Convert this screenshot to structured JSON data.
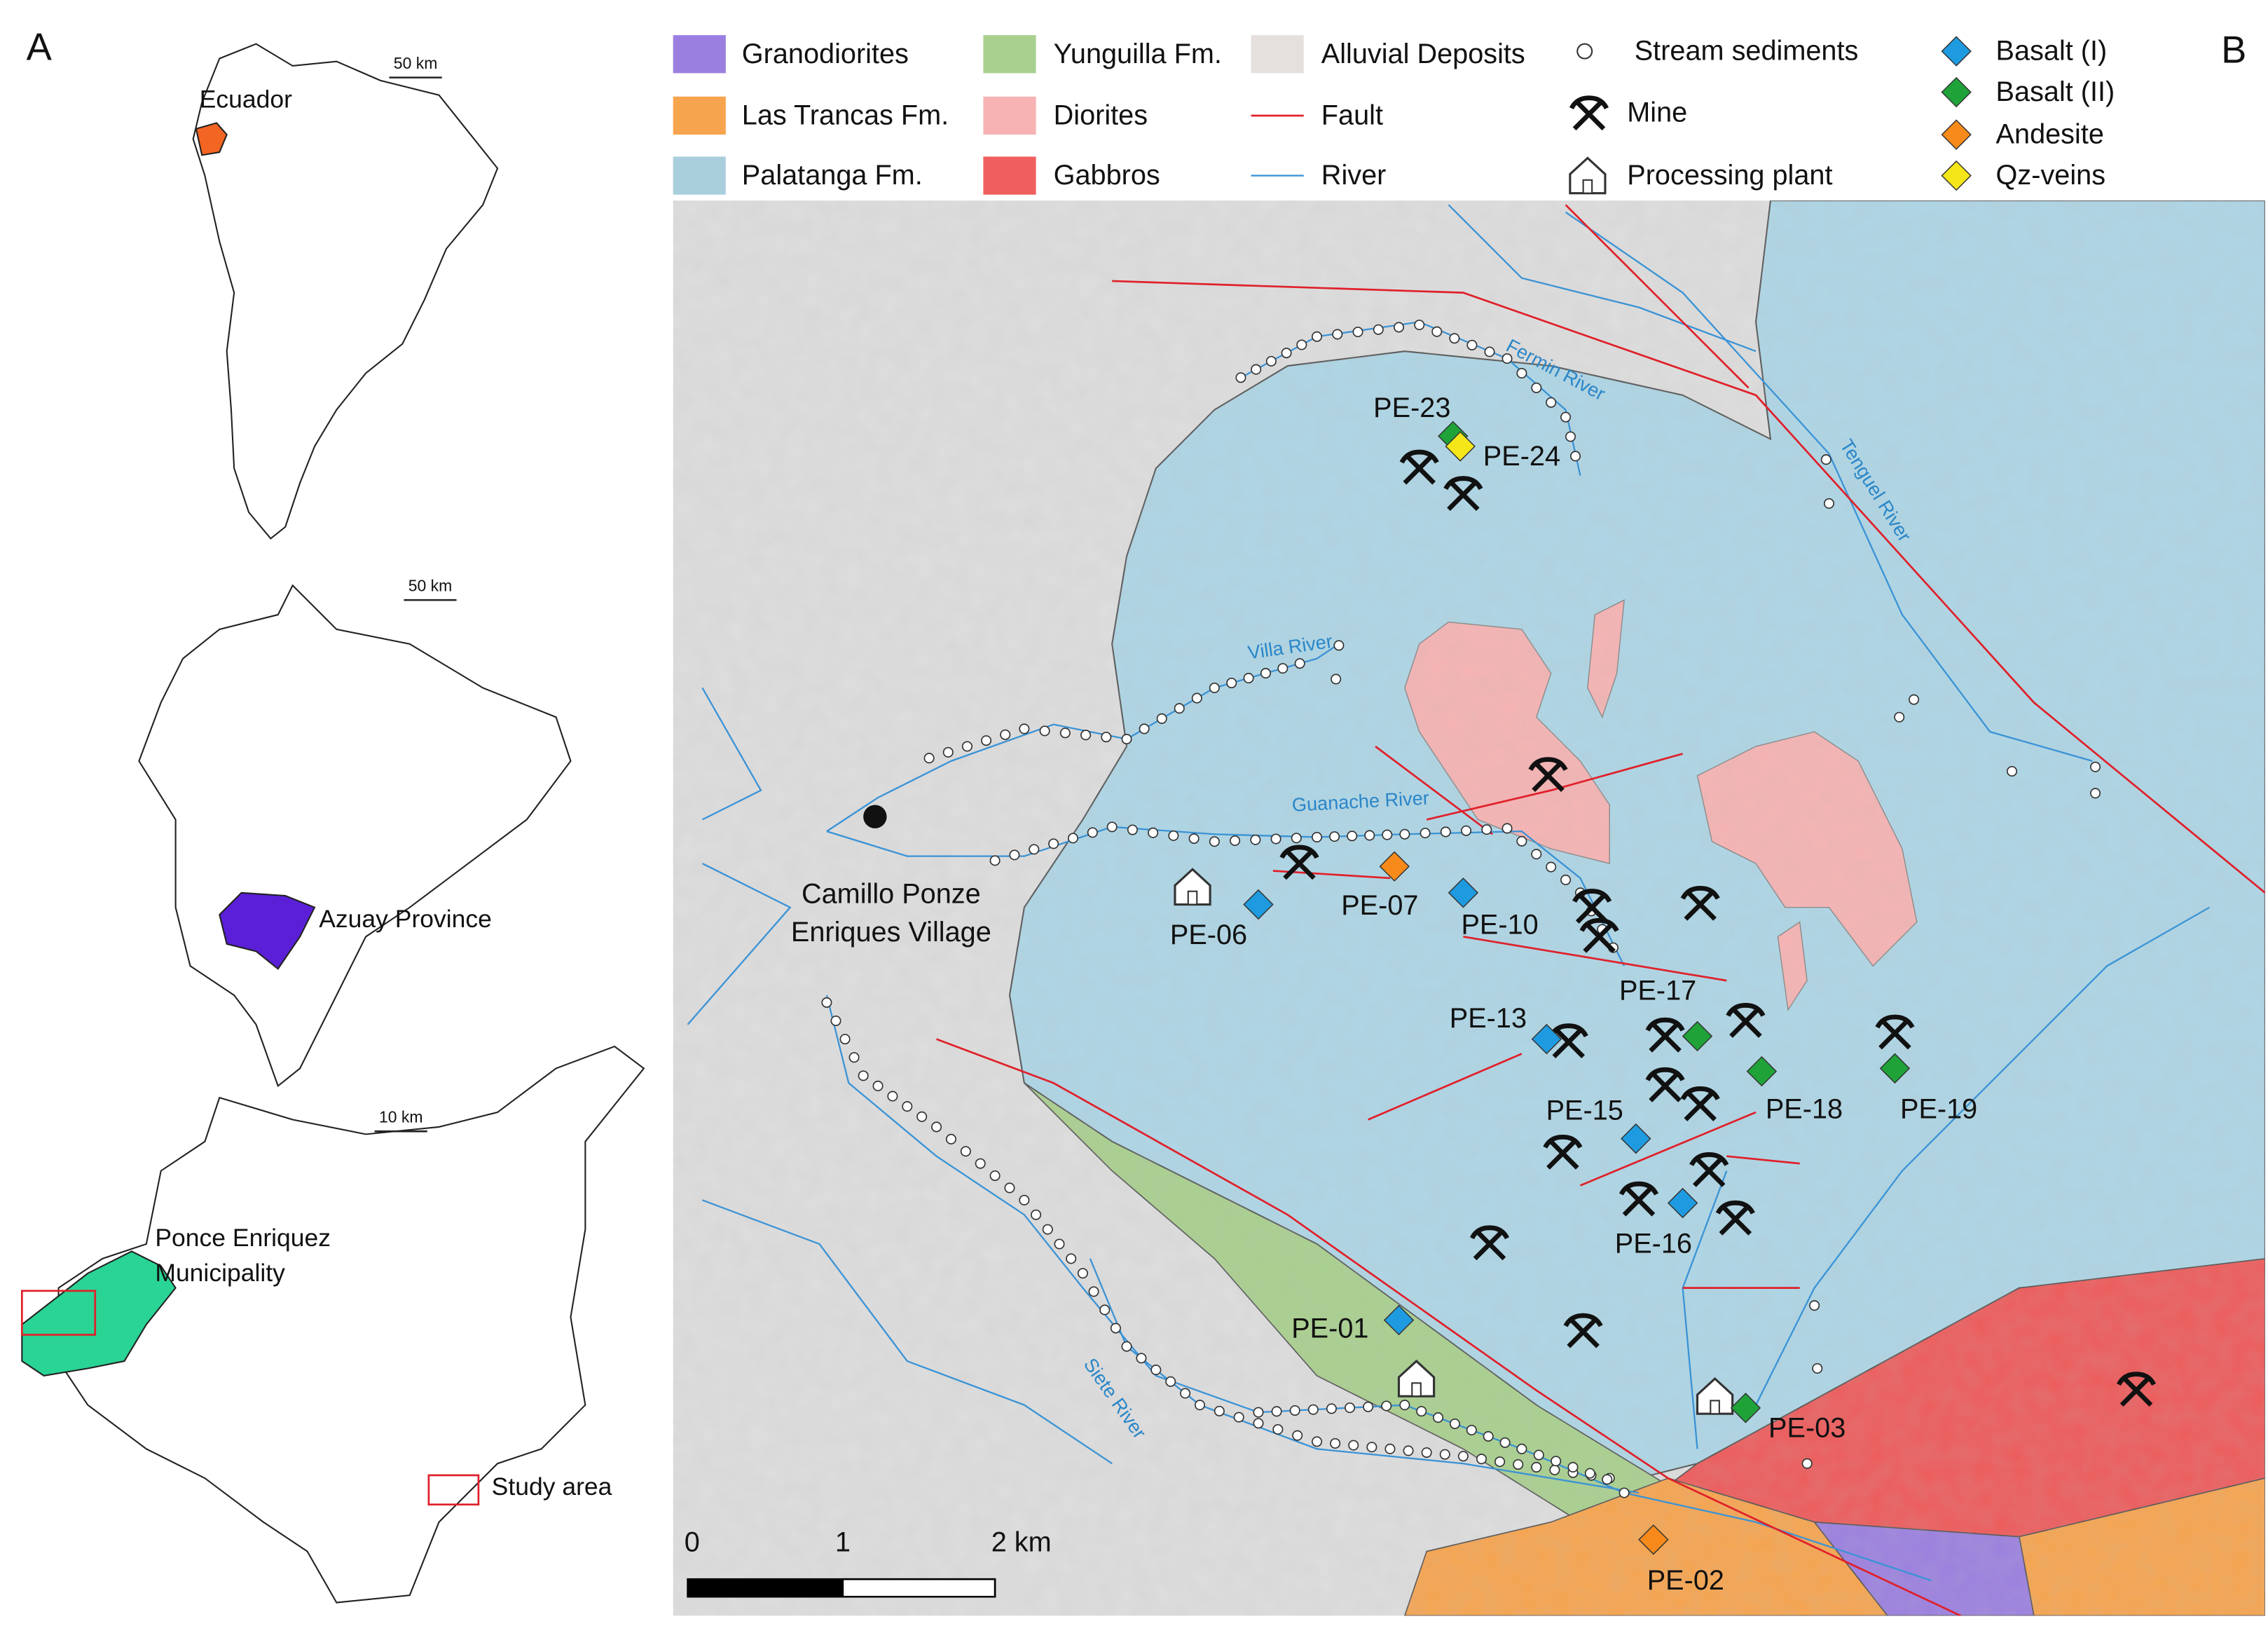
{
  "panel_a": {
    "label": "A",
    "south_america": {
      "scale": "50 km",
      "country": "Ecuador"
    },
    "ecuador": {
      "scale": "50 km",
      "province": "Azuay Province"
    },
    "azuay": {
      "scale": "10 km",
      "municipality": [
        "Ponce Enriquez",
        "Municipality"
      ],
      "legend": "Study area"
    }
  },
  "panel_b": {
    "label": "B",
    "legend": [
      "Granodiorites",
      "Las Trancas Fm.",
      "Palatanga Fm.",
      "Yunguilla Fm.",
      "Diorites",
      "Gabbros",
      "Alluvial Deposits",
      "Fault",
      "River",
      "Stream sediments",
      "Mine",
      "Processing plant",
      "Basalt (I)",
      "Basalt (II)",
      "Andesite",
      "Qz-veins"
    ],
    "rivers": [
      "Fermin River",
      "Tenguel River",
      "Villa River",
      "Guanache River",
      "Siete River"
    ],
    "village": [
      "Camillo Ponze",
      "Enriques Village"
    ],
    "samples": [
      "PE-23",
      "PE-24",
      "PE-07",
      "PE-06",
      "PE-10",
      "PE-17",
      "PE-13",
      "PE-15",
      "PE-18",
      "PE-19",
      "PE-16",
      "PE-01",
      "PE-03",
      "PE-02"
    ],
    "scale_bar": [
      "0",
      "1",
      "2 km"
    ]
  }
}
